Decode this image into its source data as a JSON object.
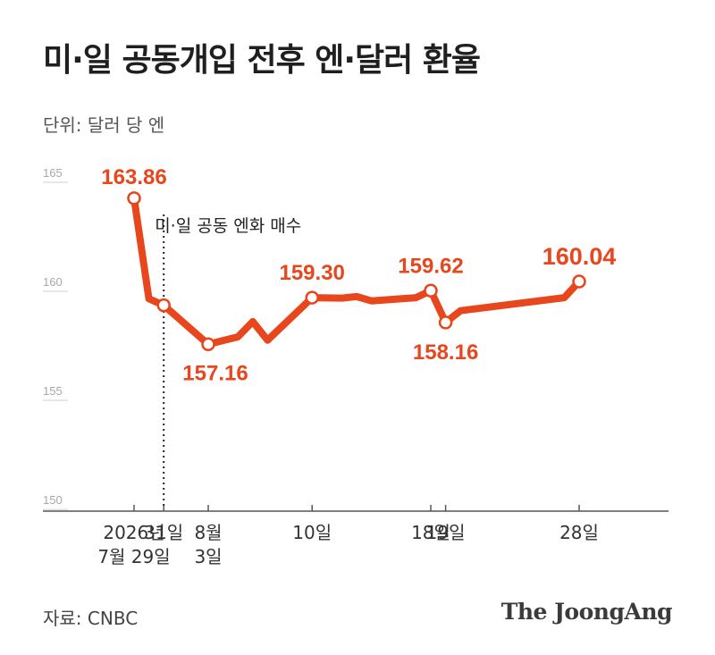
{
  "header": {
    "title": "미·일 공동개입 전후 엔·달러 환율",
    "unit": "단위: 달러 당 엔"
  },
  "footer": {
    "source": "자료: CNBC",
    "brand": "The JoongAng"
  },
  "chart_data": {
    "type": "line",
    "series": [
      {
        "values": [
          {
            "x": "2026-07-29",
            "y": 163.86
          },
          {
            "x": "2026-07-30",
            "y": 159.25
          },
          {
            "x": "2026-07-31",
            "y": 158.95
          },
          {
            "x": "2026-08-03",
            "y": 157.16
          },
          {
            "x": "2026-08-05",
            "y": 157.5
          },
          {
            "x": "2026-08-06",
            "y": 158.2
          },
          {
            "x": "2026-08-07",
            "y": 157.35
          },
          {
            "x": "2026-08-10",
            "y": 159.3
          },
          {
            "x": "2026-08-12",
            "y": 159.28
          },
          {
            "x": "2026-08-13",
            "y": 159.35
          },
          {
            "x": "2026-08-14",
            "y": 159.15
          },
          {
            "x": "2026-08-17",
            "y": 159.3
          },
          {
            "x": "2026-08-18",
            "y": 159.62
          },
          {
            "x": "2026-08-19",
            "y": 158.16
          },
          {
            "x": "2026-08-20",
            "y": 158.7
          },
          {
            "x": "2026-08-27",
            "y": 159.3
          },
          {
            "x": "2026-08-28",
            "y": 160.04
          }
        ]
      }
    ],
    "markers": [
      {
        "x": "2026-07-29",
        "y": 163.86,
        "label": "163.86"
      },
      {
        "x": "2026-07-31",
        "y": 158.95,
        "label": ""
      },
      {
        "x": "2026-08-03",
        "y": 157.16,
        "label": "157.16"
      },
      {
        "x": "2026-08-10",
        "y": 159.3,
        "label": "159.30"
      },
      {
        "x": "2026-08-18",
        "y": 159.62,
        "label": "159.62"
      },
      {
        "x": "2026-08-19",
        "y": 158.16,
        "label": "158.16"
      },
      {
        "x": "2026-08-28",
        "y": 160.04,
        "label": "160.04"
      }
    ],
    "y_ticks": [
      150,
      155,
      160,
      165
    ],
    "ylim": [
      150,
      165
    ],
    "x_ticks": [
      {
        "x": "2026-07-29",
        "lines": [
          "2026년",
          "7월 29일"
        ]
      },
      {
        "x": "2026-07-31",
        "lines": [
          "31일"
        ]
      },
      {
        "x": "2026-08-03",
        "lines": [
          "8월",
          "3일"
        ]
      },
      {
        "x": "2026-08-10",
        "lines": [
          "10일"
        ]
      },
      {
        "x": "2026-08-18",
        "lines": [
          "18일"
        ]
      },
      {
        "x": "2026-08-19",
        "lines": [
          "19일"
        ]
      },
      {
        "x": "2026-08-28",
        "lines": [
          "28일"
        ]
      }
    ],
    "annotations": [
      {
        "x": "2026-07-31",
        "text": "미·일 공동 엔화 매수"
      }
    ],
    "line_color": "#e8461c",
    "grid": false
  }
}
